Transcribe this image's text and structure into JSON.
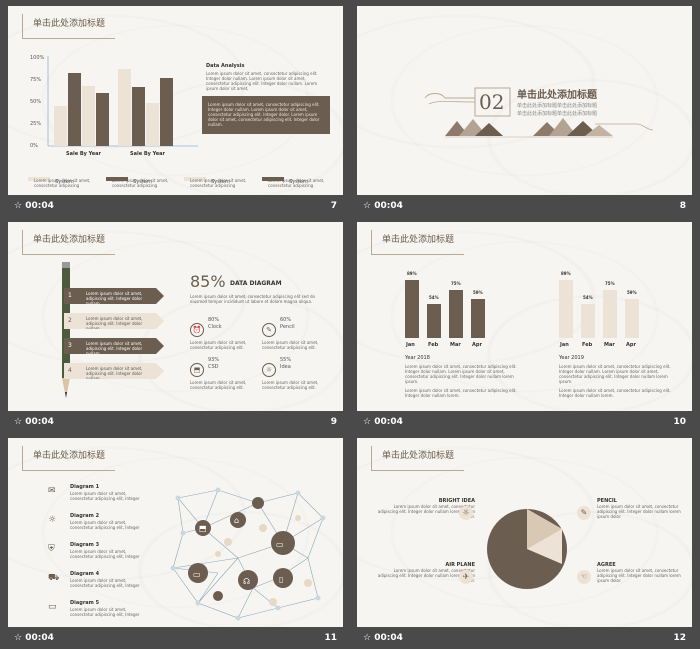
{
  "slides": [
    {
      "number": "7",
      "duration": "00:04",
      "title": "单击此处添加标题",
      "ylabels": [
        "100%",
        "75%",
        "50%",
        "25%",
        "0%"
      ],
      "xlabels": [
        "Sale By Year",
        "Sale By Year"
      ],
      "legend": [
        "System",
        "System",
        "System",
        "System"
      ],
      "legend_sub": "Lorem ipsum dolor sit amet, consectetur adipiscing",
      "analysis_title": "Data Analysis",
      "analysis_text": "Lorem ipsum dolor sit amet, consectetur adipiscing elit. Integer dolor nullam. Lorem ipsum dolor sit amet, consectetur adipiscing elit. Integer dolor nullam. Lorem ipsum dolor sit amet,",
      "box_text": "Lorem ipsum dolor sit amet, consectetur adipiscing elit. Integer dolor nullam. Lorem ipsum dolor sit amet, consectetur adipiscing elit. Integer dolor. Lorem ipsum dolor sit amet, consectetur adipiscing elit. Integer dolor nullam."
    },
    {
      "number": "8",
      "duration": "00:04",
      "section": "02",
      "heading": "单击此处添加标题",
      "sub1": "单击此处添加标题单击此处添加标题",
      "sub2": "单击此处添加标题单击此处添加标题"
    },
    {
      "number": "9",
      "duration": "00:04",
      "title": "单击此处添加标题",
      "steps": [
        "1",
        "2",
        "3",
        "4"
      ],
      "step_text": "Lorem ipsum dolor sit amet, adipiscing elit. Integer dolor nullam.",
      "big_pct": "85%",
      "diagram_title": "DATA DIAGRAM",
      "diagram_text": "Lorem ipsum dolor sit amet, consectetur adipiscing elit sed do eiusmod tempor incididunt ut labore et dolore magna aliqua.",
      "stats": [
        {
          "pct": "80%",
          "label": "Clock"
        },
        {
          "pct": "60%",
          "label": "Pencil"
        },
        {
          "pct": "93%",
          "label": "CSD"
        },
        {
          "pct": "55%",
          "label": "Idea"
        }
      ],
      "stat_text": "Lorem ipsum dolor sit amet, consectetur adipiscing elit."
    },
    {
      "number": "10",
      "duration": "00:04",
      "title": "单击此处添加标题",
      "months": [
        "Jan",
        "Feb",
        "Mar",
        "Apr"
      ],
      "year1": "Year 2018",
      "year2": "Year 2019",
      "vals1": [
        "89%",
        "54%",
        "75%",
        "59%"
      ],
      "vals2": [
        "89%",
        "54%",
        "75%",
        "59%"
      ],
      "body_text": "Lorem ipsum dolor sit amet, consectetur adipiscing elit. Integer dolor nullam. Lorem ipsum dolor sit amet, consectetur adipiscing elit. Integer dolor nullam lorem ipsum.",
      "foot_text": "Lorem ipsum dolor sit amet, consectetur adipiscing elit. Integer dolor nullam lorem."
    },
    {
      "number": "11",
      "duration": "00:04",
      "title": "单击此处添加标题",
      "diagrams": [
        "Diagram 1",
        "Diagram 2",
        "Diagram 3",
        "Diagram 4",
        "Diagram 5"
      ],
      "diagram_text": "Lorem ipsum dolor sit amet, consectetur adipiscing elit, Integer"
    },
    {
      "number": "12",
      "duration": "00:04",
      "title": "单击此处添加标题",
      "items": [
        {
          "name": "BRIGHT IDEA"
        },
        {
          "name": "PENCIL"
        },
        {
          "name": "AIR PLANE"
        },
        {
          "name": "AGREE"
        }
      ],
      "item_text": "Lorem ipsum dolor sit amet, consectetur adipiscing elit. Integer dolor nullam lorem ipsum dolor."
    }
  ],
  "colors": {
    "dark": "#6b5d50",
    "light": "#ece3d6",
    "bg": "#f7f5f1",
    "strip": "#4a4a4a"
  }
}
